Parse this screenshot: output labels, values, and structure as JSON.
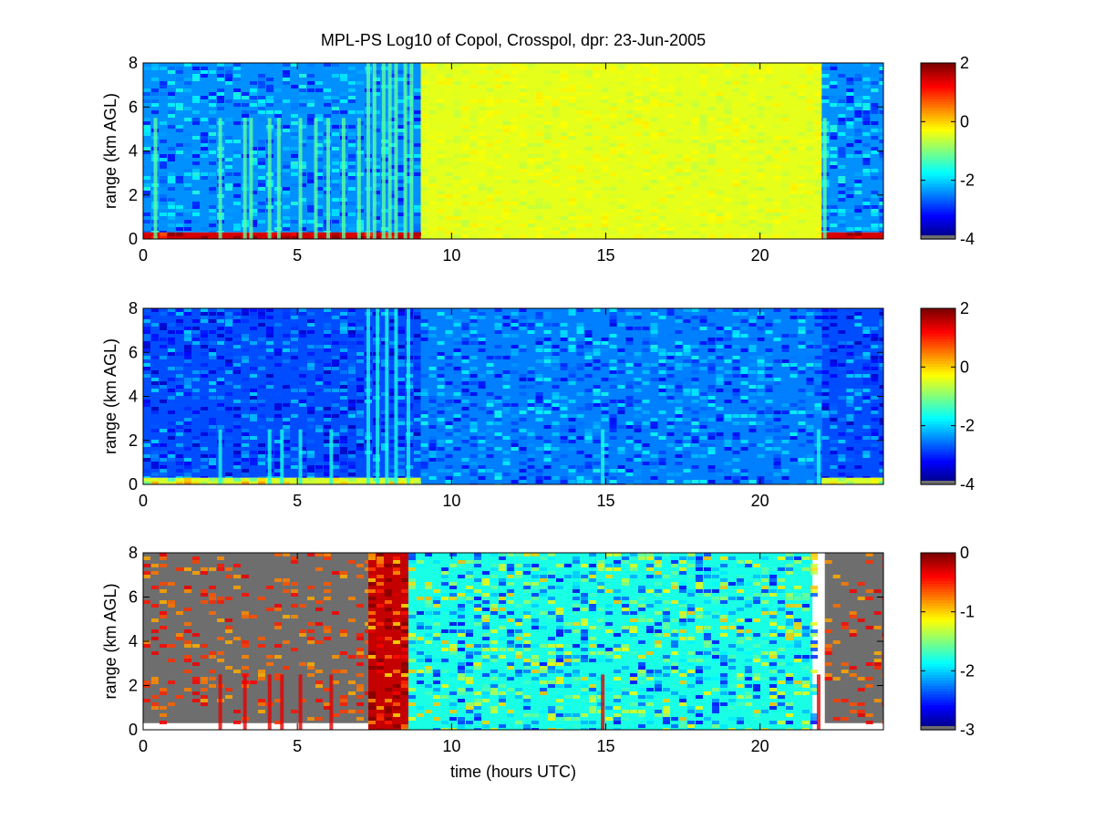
{
  "title": "MPL-PS Log10 of Copol, Crosspol, dpr: 23-Jun-2005",
  "chart_data": [
    {
      "type": "heatmap",
      "panel": "copol",
      "title": "MPL-PS Log10 of Copol, Crosspol, dpr: 23-Jun-2005",
      "xlabel": "",
      "ylabel": "range (km AGL)",
      "xlim": [
        0,
        24
      ],
      "ylim": [
        0,
        8
      ],
      "x_ticks": [
        0,
        5,
        10,
        15,
        20
      ],
      "y_ticks": [
        0,
        2,
        4,
        6,
        8
      ],
      "colorbar": {
        "min": -4,
        "max": 2,
        "ticks": [
          2,
          0,
          -2,
          -4
        ],
        "colormap": "jet"
      },
      "regions": [
        {
          "description_level": "night",
          "x_range": [
            0,
            9
          ],
          "y_range": [
            0.3,
            8
          ],
          "value": -2.4
        },
        {
          "description_level": "day",
          "x_range": [
            9,
            22
          ],
          "y_range": [
            0,
            8
          ],
          "value": -0.4
        },
        {
          "description_level": "night",
          "x_range": [
            22,
            24
          ],
          "y_range": [
            0.3,
            8
          ],
          "value": -2.4
        },
        {
          "description_level": "surface",
          "x_range": [
            0,
            9
          ],
          "y_range": [
            0,
            0.3
          ],
          "value": 1.5
        },
        {
          "description_level": "surface",
          "x_range": [
            22,
            24
          ],
          "y_range": [
            0,
            0.3
          ],
          "value": 1.5
        }
      ],
      "spikes": [
        0.4,
        2.5,
        3.3,
        3.5,
        4.1,
        4.4,
        5.1,
        5.6,
        6.0,
        6.5,
        7.0,
        7.3,
        7.5,
        7.8,
        8.0,
        8.2,
        8.5,
        8.7,
        22.1
      ]
    },
    {
      "type": "heatmap",
      "panel": "crosspol",
      "title": "",
      "xlabel": "",
      "ylabel": "range (km AGL)",
      "xlim": [
        0,
        24
      ],
      "ylim": [
        0,
        8
      ],
      "x_ticks": [
        0,
        5,
        10,
        15,
        20
      ],
      "y_ticks": [
        0,
        2,
        4,
        6,
        8
      ],
      "colorbar": {
        "min": -4,
        "max": 2,
        "ticks": [
          2,
          0,
          -2,
          -4
        ],
        "colormap": "jet"
      },
      "regions": [
        {
          "description_level": "night",
          "x_range": [
            0,
            9
          ],
          "y_range": [
            0.3,
            8
          ],
          "value": -2.8
        },
        {
          "description_level": "day",
          "x_range": [
            9,
            22
          ],
          "y_range": [
            0,
            8
          ],
          "value": -2.5
        },
        {
          "description_level": "night",
          "x_range": [
            22,
            24
          ],
          "y_range": [
            0.3,
            8
          ],
          "value": -2.8
        },
        {
          "description_level": "surface",
          "x_range": [
            0,
            9
          ],
          "y_range": [
            0,
            0.3
          ],
          "value": -0.5
        },
        {
          "description_level": "surface",
          "x_range": [
            22,
            24
          ],
          "y_range": [
            0,
            0.3
          ],
          "value": -0.5
        }
      ],
      "spikes": [
        2.5,
        4.1,
        4.5,
        5.1,
        6.1,
        7.3,
        7.6,
        7.9,
        8.2,
        8.6,
        14.9,
        21.9
      ]
    },
    {
      "type": "heatmap",
      "panel": "dpr",
      "title": "",
      "xlabel": "time (hours UTC)",
      "ylabel": "range (km AGL)",
      "xlim": [
        0,
        24
      ],
      "ylim": [
        0,
        8
      ],
      "x_ticks": [
        0,
        5,
        10,
        15,
        20
      ],
      "y_ticks": [
        0,
        2,
        4,
        6,
        8
      ],
      "colorbar": {
        "min": -3,
        "max": 0,
        "ticks": [
          0,
          -1,
          -2,
          -3
        ],
        "colormap": "jet"
      },
      "regions": [
        {
          "description_level": "night-missing",
          "x_range": [
            0,
            7.3
          ],
          "y_range": [
            0.3,
            8
          ],
          "value": null
        },
        {
          "description_level": "transition",
          "x_range": [
            7.3,
            8.6
          ],
          "y_range": [
            0,
            8
          ],
          "value": -0.2
        },
        {
          "description_level": "day",
          "x_range": [
            8.6,
            21.7
          ],
          "y_range": [
            0,
            8
          ],
          "value": -1.8
        },
        {
          "description_level": "night-missing",
          "x_range": [
            22.1,
            24
          ],
          "y_range": [
            0.3,
            8
          ],
          "value": null
        }
      ],
      "spikes": [
        2.5,
        3.3,
        4.1,
        4.5,
        5.1,
        6.1,
        14.9,
        21.9
      ]
    }
  ]
}
